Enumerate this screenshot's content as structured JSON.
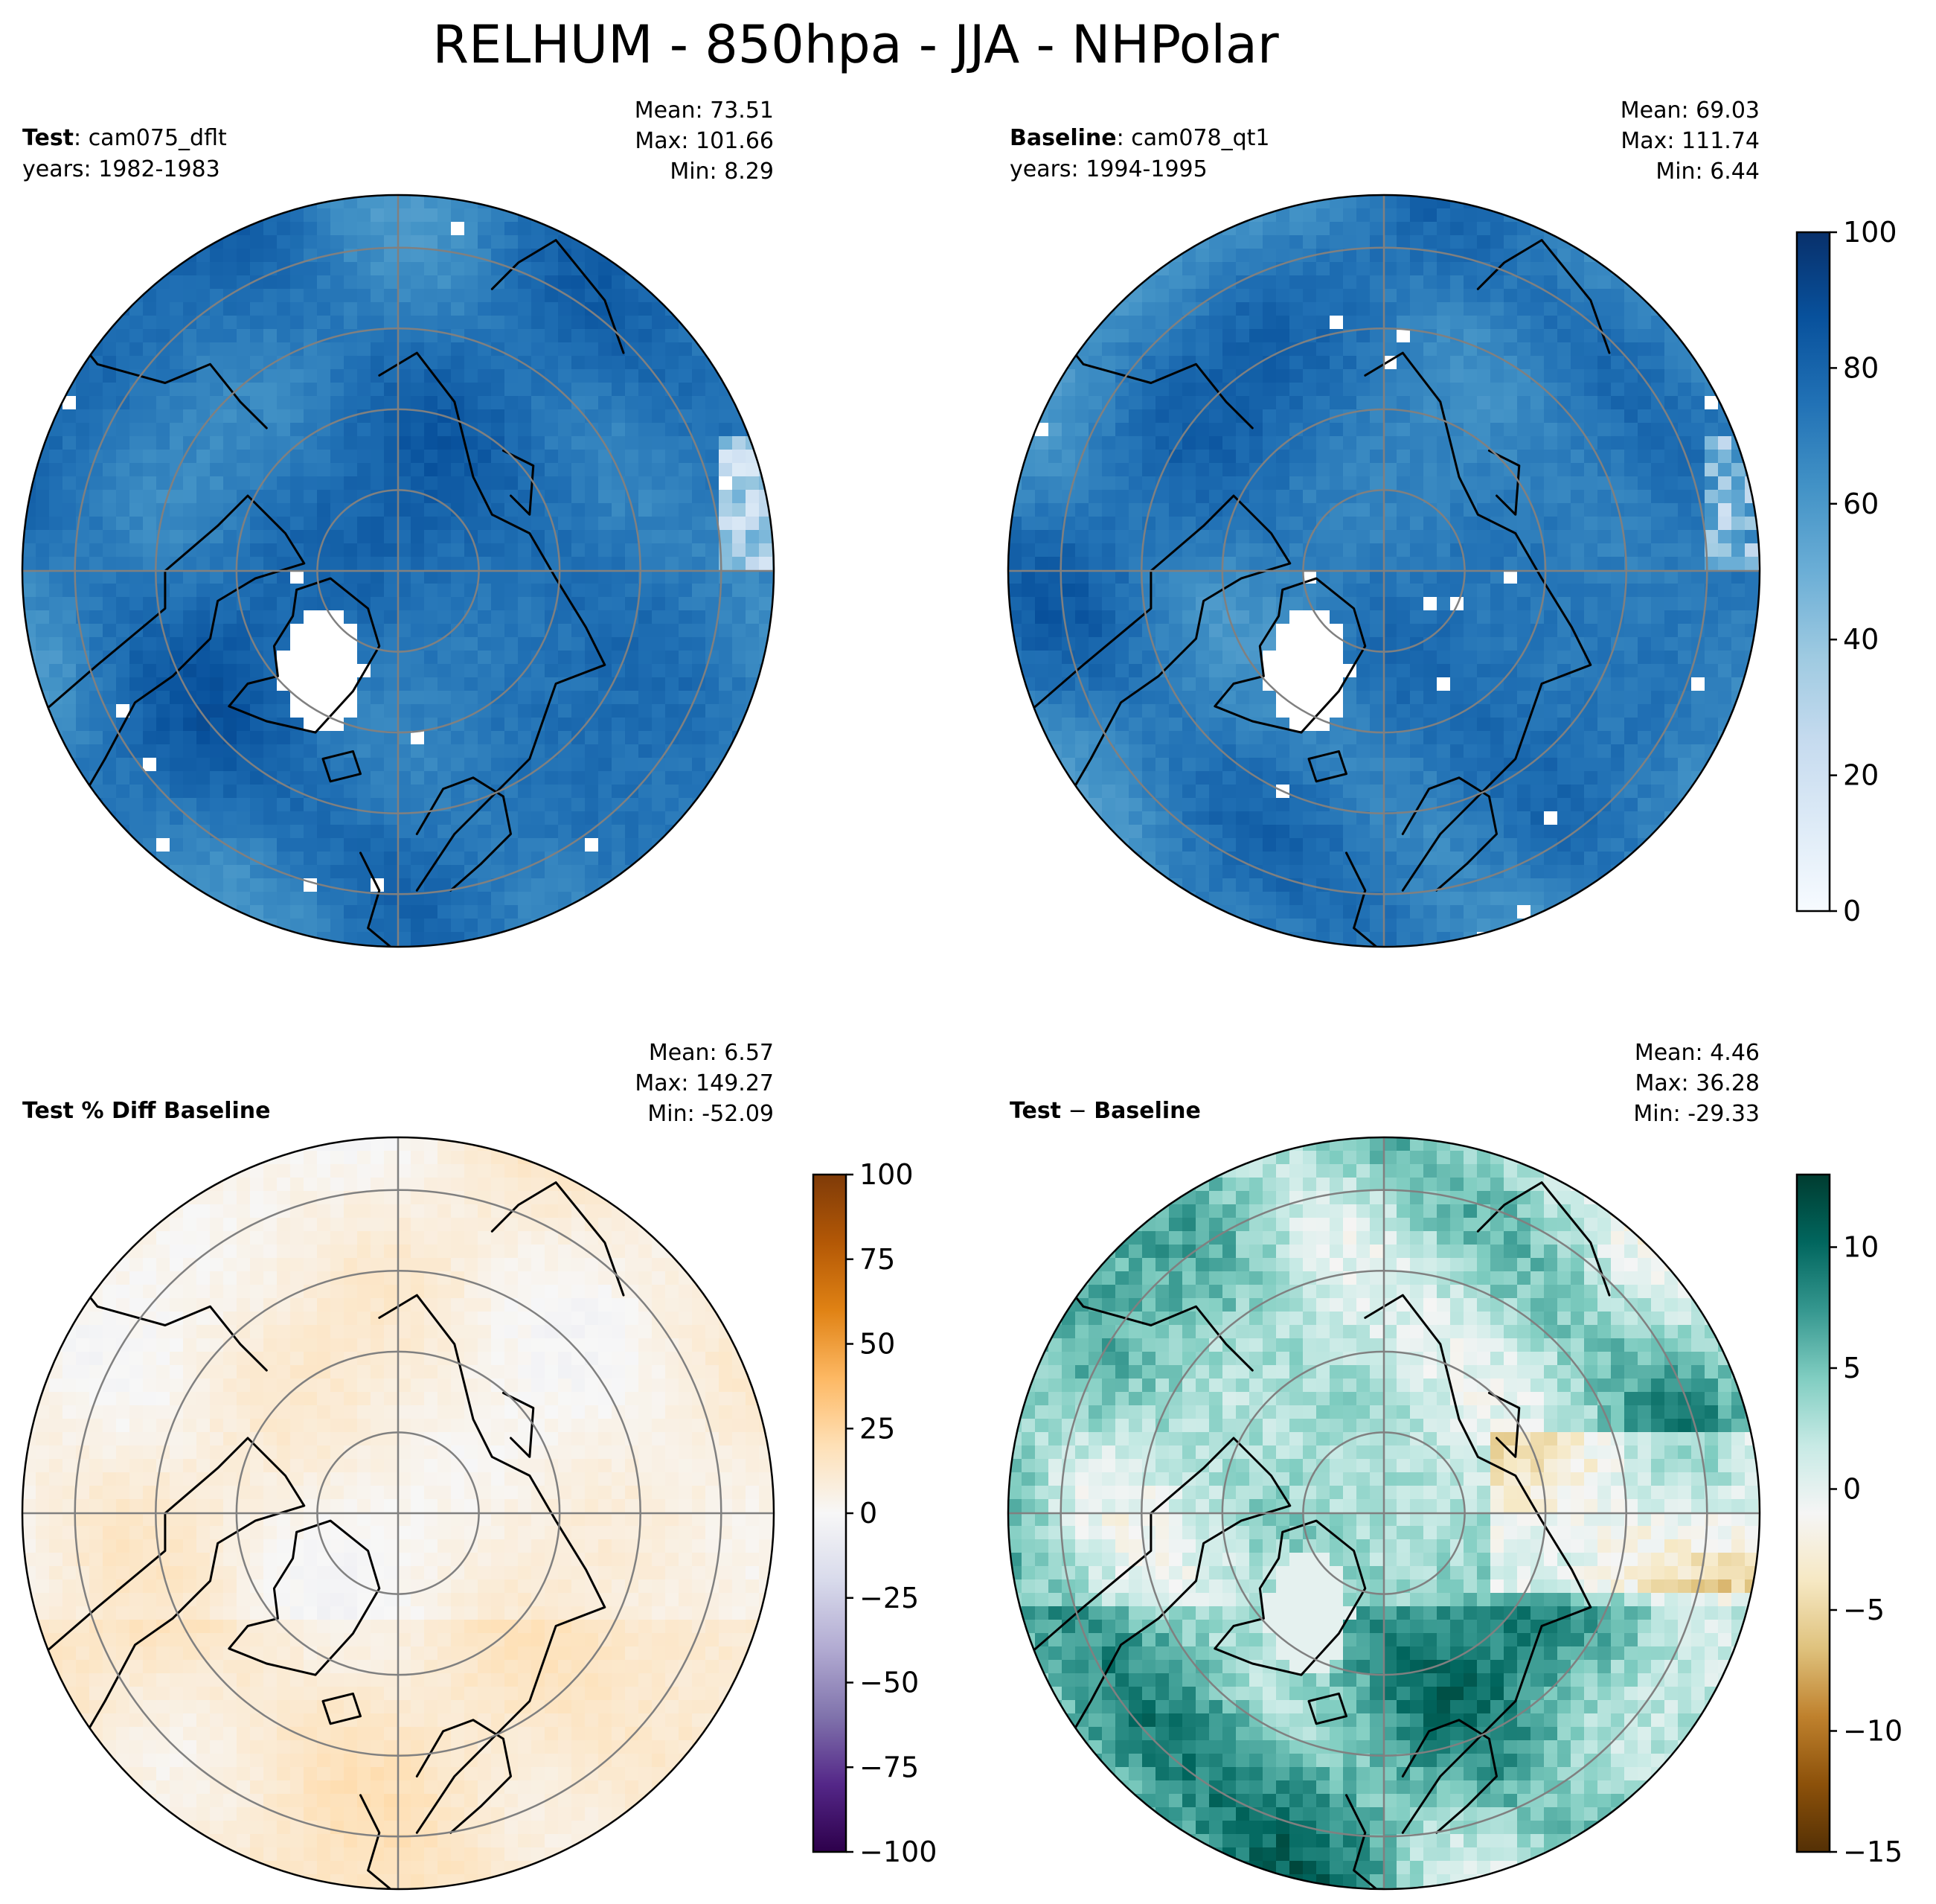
{
  "chart_data": {
    "type": "heatmap",
    "title": "RELHUM - 850hpa - JJA - NHPolar",
    "panels": [
      {
        "kind": "test",
        "label_bold": "Test",
        "label_sep": ": ",
        "case": "cam075_dflt",
        "years": "years: 1982-1983",
        "stats": [
          "Mean: 73.51",
          "Max: 101.66",
          "Min:  8.29"
        ],
        "field": {
          "base": 75,
          "amp": 14,
          "lowRegions": [
            [
              0.33,
              0.24
            ],
            [
              0.22,
              0.08
            ]
          ],
          "gaps": 6,
          "seed": 11
        }
      },
      {
        "kind": "baseline",
        "label_bold": "Baseline",
        "label_sep": ": ",
        "case": "cam078_qt1",
        "years": "years: 1994-1995",
        "stats": [
          "Mean: 69.03",
          "Max: 111.74",
          "Min:  6.44"
        ],
        "field": {
          "base": 72,
          "amp": 15,
          "lowRegions": [
            [
              0.33,
              0.24
            ],
            [
              0.22,
              0.08
            ]
          ],
          "gaps": 9,
          "seed": 23
        }
      },
      {
        "kind": "pctdiff",
        "label_bold": "Test % Diff Baseline",
        "stats": [
          "Mean:  6.57",
          "Max: 149.27",
          "Min: -52.09"
        ],
        "field": {
          "base": 6,
          "amp": 10,
          "seed": 37
        }
      },
      {
        "kind": "diff",
        "label_bold": "Test",
        "label_sep": " − ",
        "label_bold2": "Baseline",
        "stats": [
          "Mean:  4.46",
          "Max: 36.28",
          "Min: -29.33"
        ],
        "field": {
          "base": 3,
          "amp": 7,
          "seed": 53
        }
      }
    ],
    "colorbars": [
      {
        "for": "baseline",
        "cmap": "Blues",
        "range": [
          0,
          100
        ],
        "ticks": [
          "100",
          "80",
          "60",
          "40",
          "20",
          "0"
        ]
      },
      {
        "for": "pctdiff",
        "cmap": "PuOr_r",
        "range": [
          -100,
          100
        ],
        "ticks": [
          "100",
          "75",
          "50",
          "25",
          "0",
          "−25",
          "−50",
          "−75",
          "−100"
        ]
      },
      {
        "for": "diff",
        "cmap": "BrBG",
        "range": [
          -15,
          13
        ],
        "ticks": [
          "10",
          "5",
          "0",
          "−5",
          "−10",
          "−15"
        ]
      }
    ],
    "colors": {
      "blues": [
        "#f7fbff",
        "#deebf7",
        "#c6dbef",
        "#9ecae1",
        "#6baed6",
        "#4292c6",
        "#2171b5",
        "#08519c",
        "#08306b"
      ],
      "puor": [
        "#2d004b",
        "#542788",
        "#8073ac",
        "#b2abd2",
        "#d8daeb",
        "#f7f7f7",
        "#fee0b6",
        "#fdb863",
        "#e08214",
        "#b35806",
        "#7f3b08"
      ],
      "brbg": [
        "#543005",
        "#8c510a",
        "#bf812d",
        "#dfc27d",
        "#f6e8c3",
        "#f5f5f5",
        "#c7eae5",
        "#80cdc1",
        "#35978f",
        "#01665e",
        "#003c30"
      ],
      "grid": "#808080",
      "coast": "#000000"
    }
  }
}
